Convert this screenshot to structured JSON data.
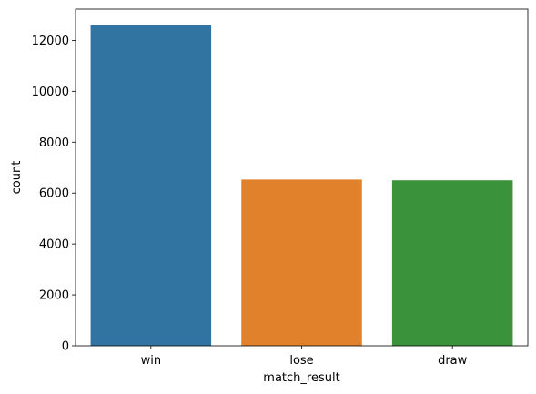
{
  "chart_data": {
    "type": "bar",
    "title": "",
    "xlabel": "match_result",
    "ylabel": "count",
    "categories": [
      "win",
      "lose",
      "draw"
    ],
    "values": [
      12600,
      6530,
      6500
    ],
    "colors": [
      "#3274a1",
      "#e1812c",
      "#3a923a"
    ],
    "ylim": [
      0,
      13230
    ],
    "yticks": [
      0,
      2000,
      4000,
      6000,
      8000,
      10000,
      12000
    ],
    "ytick_labels": [
      "0",
      "2000",
      "4000",
      "6000",
      "8000",
      "10000",
      "12000"
    ],
    "grid": false,
    "legend": "none"
  }
}
